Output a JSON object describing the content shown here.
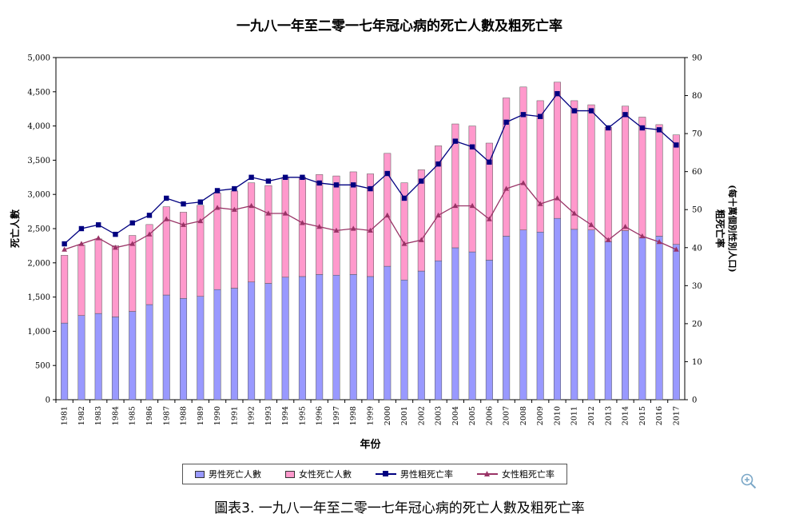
{
  "chart_data": {
    "type": "bar+line",
    "title": "一九八一年至二零一七年冠心病的死亡人數及粗死亡率",
    "xlabel": "年份",
    "ylabel_left": "死亡人數",
    "ylabel_right_line1": "粗死亡率",
    "ylabel_right_line2": "(每十萬個別性別人口)",
    "ylim_left": [
      0,
      5000
    ],
    "ylim_right": [
      0,
      90
    ],
    "yticks_left": [
      "0",
      "500",
      "1,000",
      "1,500",
      "2,000",
      "2,500",
      "3,000",
      "3,500",
      "4,000",
      "4,500",
      "5,000"
    ],
    "yticks_right": [
      "0",
      "10",
      "20",
      "30",
      "40",
      "50",
      "60",
      "70",
      "80",
      "90"
    ],
    "categories": [
      "1981",
      "1982",
      "1983",
      "1984",
      "1985",
      "1986",
      "1987",
      "1988",
      "1989",
      "1990",
      "1991",
      "1992",
      "1993",
      "1994",
      "1995",
      "1996",
      "1997",
      "1998",
      "1999",
      "2000",
      "2001",
      "2002",
      "2003",
      "2004",
      "2005",
      "2006",
      "2007",
      "2008",
      "2009",
      "2010",
      "2011",
      "2012",
      "2013",
      "2014",
      "2015",
      "2016",
      "2017"
    ],
    "stacked_bars": [
      {
        "name": "男性死亡人數",
        "color": "#9999ff",
        "values": [
          1120,
          1230,
          1260,
          1210,
          1290,
          1390,
          1530,
          1480,
          1510,
          1610,
          1630,
          1720,
          1700,
          1790,
          1800,
          1830,
          1820,
          1830,
          1800,
          1950,
          1750,
          1880,
          2030,
          2220,
          2160,
          2040,
          2390,
          2480,
          2450,
          2650,
          2490,
          2480,
          2310,
          2470,
          2370,
          2390,
          2270
        ]
      },
      {
        "name": "女性死亡人數",
        "color": "#ff99cc",
        "values": [
          990,
          1030,
          1090,
          1040,
          1110,
          1170,
          1290,
          1260,
          1330,
          1410,
          1420,
          1450,
          1430,
          1460,
          1450,
          1460,
          1450,
          1500,
          1500,
          1650,
          1420,
          1480,
          1680,
          1810,
          1840,
          1710,
          2020,
          2090,
          1920,
          1990,
          1880,
          1830,
          1670,
          1820,
          1760,
          1630,
          1600
        ]
      }
    ],
    "series": [
      {
        "name": "男性粗死亡率",
        "color": "#000080",
        "marker": "square",
        "values": [
          41,
          45,
          46,
          43.5,
          46.5,
          48.5,
          53,
          51.5,
          52,
          55,
          55.5,
          58.5,
          57.5,
          58.5,
          58.5,
          57,
          56.5,
          56.5,
          55.5,
          59.5,
          53,
          57.5,
          62,
          68,
          66.5,
          62.5,
          73,
          75,
          74.5,
          80.5,
          76,
          76,
          71.5,
          75,
          71.5,
          71,
          67
        ]
      },
      {
        "name": "女性粗死亡率",
        "color": "#993366",
        "marker": "triangle",
        "values": [
          39.5,
          41,
          42.5,
          40,
          41,
          43.5,
          47.5,
          46,
          47,
          50.5,
          50,
          51,
          49,
          49,
          46.5,
          45.5,
          44.5,
          45,
          44.5,
          48.5,
          41,
          42,
          48.5,
          51,
          51,
          47.5,
          55.5,
          57,
          51.5,
          53,
          49,
          46,
          42,
          45.5,
          43,
          41.5,
          39.5
        ]
      }
    ],
    "legend_position": "bottom",
    "grid": false
  },
  "caption": "圖表3. 一九八一年至二零一七年冠心病的死亡人數及粗死亡率",
  "icons": {
    "zoom": "zoom-in-icon"
  }
}
